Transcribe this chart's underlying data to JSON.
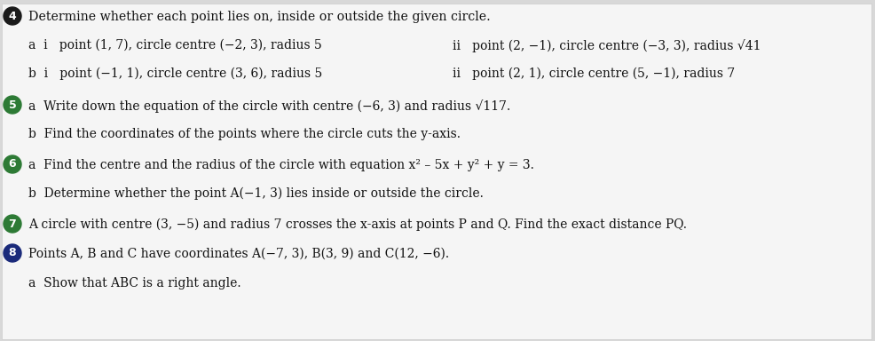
{
  "bg_color": "#d8d8d8",
  "page_bg": "#f5f5f5",
  "bullet_colors": [
    "#1a1a1a",
    "#2d7a35",
    "#2d7a35",
    "#2d7a35",
    "#1a2a7a"
  ],
  "bullet_labels": [
    "4",
    "5",
    "6",
    "7",
    "8"
  ],
  "title_line": "Determine whether each point lies on, inside or outside the given circle.",
  "a_i": "a  i   point (1, 7), circle centre (−2, 3), radius 5",
  "a_ii": "ii   point (2, −1), circle centre (−3, 3), radius √41",
  "b_i": "b  i   point (−1, 1), circle centre (3, 6), radius 5",
  "b_ii": "ii   point (2, 1), circle centre (5, −1), radius 7",
  "q5a": "a  Write down the equation of the circle with centre (−6, 3) and radius √117.",
  "q5b": "b  Find the coordinates of the points where the circle cuts the y-axis.",
  "q6a": "a  Find the centre and the radius of the circle with equation x² – 5x + y² + y = 3.",
  "q6b": "b  Determine whether the point A(−1, 3) lies inside or outside the circle.",
  "q7": "A circle with centre (3, −5) and radius 7 crosses the x-axis at points P and Q. Find the exact distance PQ.",
  "q8": "Points A, B and C have coordinates A(−7, 3), B(3, 9) and C(12, −6).",
  "q8a": "a  Show that ABC is a right angle.",
  "fontsize": 10.0,
  "title_fontsize": 10.2
}
